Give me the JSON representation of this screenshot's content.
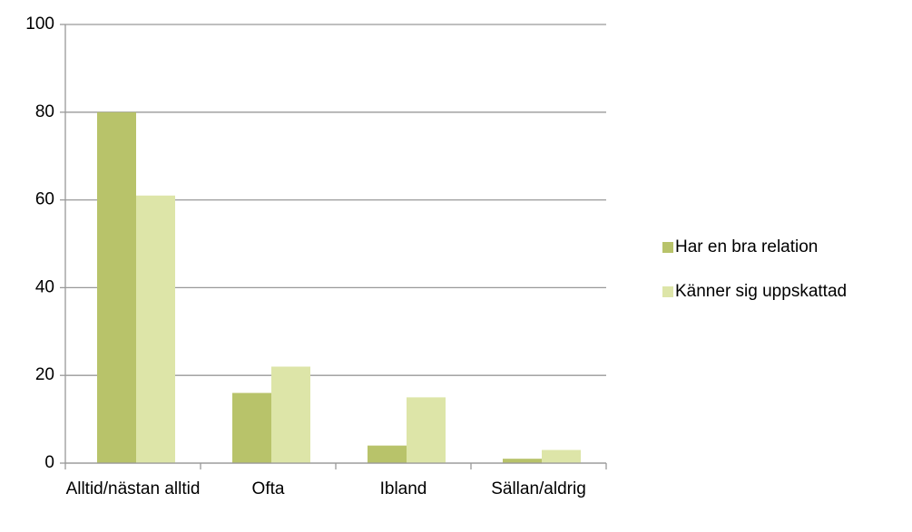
{
  "chart_data": {
    "type": "bar",
    "categories": [
      "Alltid/nästan alltid",
      "Ofta",
      "Ibland",
      "Sällan/aldrig"
    ],
    "series": [
      {
        "name": "Har en bra relation",
        "color": "#b8c36a",
        "values": [
          80,
          16,
          4,
          1
        ]
      },
      {
        "name": "Känner sig uppskattad",
        "color": "#dde5a8",
        "values": [
          61,
          22,
          15,
          3
        ]
      }
    ],
    "ylim": [
      0,
      100
    ],
    "yticks": [
      0,
      20,
      40,
      60,
      80,
      100
    ],
    "grid": true,
    "legend": "right"
  }
}
